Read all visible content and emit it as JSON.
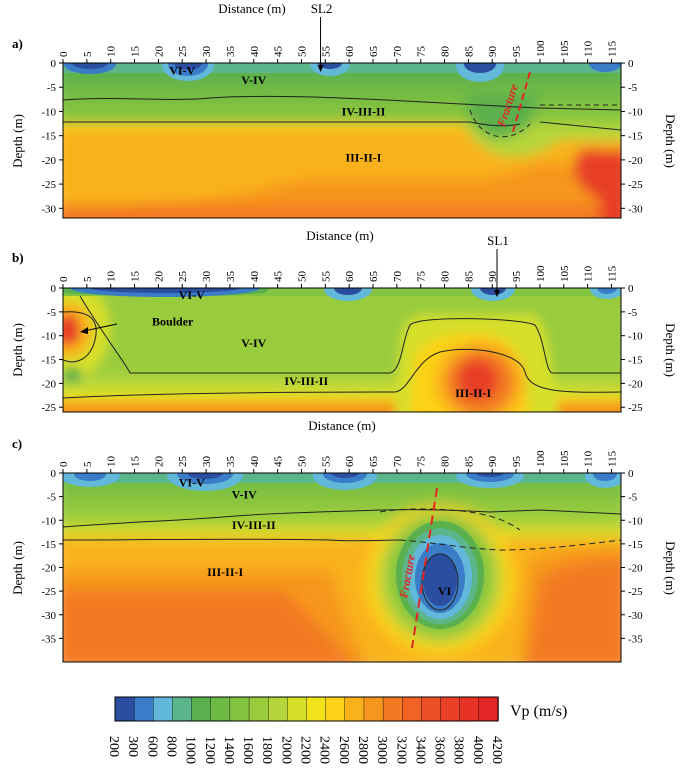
{
  "chart_data": [
    {
      "type": "heatmap",
      "panel_label": "a)",
      "xlabel_top": "Distance (m)",
      "xlabel_bottom": "Distance (m)",
      "ylabel_left": "Depth (m)",
      "ylabel_right": "Depth (m)",
      "xlim": [
        0,
        117
      ],
      "ylim": [
        -32,
        0
      ],
      "x_ticks": [
        0,
        5,
        10,
        15,
        20,
        25,
        30,
        35,
        40,
        45,
        50,
        55,
        60,
        65,
        70,
        75,
        80,
        85,
        90,
        95,
        100,
        105,
        110,
        115
      ],
      "y_ticks": [
        0,
        -5,
        -10,
        -15,
        -20,
        -25,
        -30
      ],
      "surface_marker": {
        "label": "SL2",
        "x": 54
      },
      "zones": [
        {
          "label": "VI-V",
          "x": 25,
          "y": -1.5
        },
        {
          "label": "V-IV",
          "x": 40,
          "y": -3.5
        },
        {
          "label": "IV-III-II",
          "x": 63,
          "y": -10
        },
        {
          "label": "III-II-I",
          "x": 63,
          "y": -19.5
        }
      ],
      "annotations": [
        {
          "text": "Fracture",
          "x": 94,
          "y": -9
        }
      ]
    },
    {
      "type": "heatmap",
      "panel_label": "b)",
      "xlabel_bottom": "Distance (m)",
      "ylabel_left": "Depth (m)",
      "ylabel_right": "Depth (m)",
      "xlim": [
        0,
        117
      ],
      "ylim": [
        -26,
        0
      ],
      "x_ticks": [
        0,
        5,
        10,
        15,
        20,
        25,
        30,
        35,
        40,
        45,
        50,
        55,
        60,
        65,
        70,
        75,
        80,
        85,
        90,
        95,
        100,
        105,
        110,
        115
      ],
      "y_ticks": [
        0,
        -5,
        -10,
        -15,
        -20,
        -25
      ],
      "surface_marker": {
        "label": "SL1",
        "x": 91
      },
      "zones": [
        {
          "label": "VI-V",
          "x": 27,
          "y": -1.5
        },
        {
          "label": "V-IV",
          "x": 40,
          "y": -11.5
        },
        {
          "label": "IV-III-II",
          "x": 51,
          "y": -19.5
        },
        {
          "label": "III-II-I",
          "x": 86,
          "y": -22
        }
      ],
      "annotations": [
        {
          "text": "Boulder",
          "x": 23,
          "y": -7
        }
      ]
    },
    {
      "type": "heatmap",
      "panel_label": "c)",
      "ylabel_left": "Depth (m)",
      "ylabel_right": "Depth (m)",
      "xlim": [
        0,
        117
      ],
      "ylim": [
        -40,
        0
      ],
      "x_ticks": [
        0,
        5,
        10,
        15,
        20,
        25,
        30,
        35,
        40,
        45,
        50,
        55,
        60,
        65,
        70,
        75,
        80,
        85,
        90,
        95,
        100,
        105,
        110,
        115
      ],
      "y_ticks": [
        0,
        -5,
        -10,
        -15,
        -20,
        -25,
        -30,
        -35
      ],
      "zones": [
        {
          "label": "VI-V",
          "x": 27,
          "y": -2
        },
        {
          "label": "V-IV",
          "x": 38,
          "y": -4.5
        },
        {
          "label": "IV-III-II",
          "x": 40,
          "y": -11
        },
        {
          "label": "III-II-I",
          "x": 34,
          "y": -21
        },
        {
          "label": "VI",
          "x": 80,
          "y": -25
        }
      ],
      "annotations": [
        {
          "text": "Fracture",
          "x": 73,
          "y": -22
        }
      ]
    }
  ],
  "colorbar": {
    "label": "Vp (m/s)",
    "ticks": [
      200,
      300,
      600,
      800,
      1000,
      1200,
      1400,
      1600,
      1800,
      2000,
      2200,
      2400,
      2600,
      2800,
      3000,
      3200,
      3400,
      3600,
      3800,
      4000,
      4200
    ],
    "colors": [
      "#2b4ea0",
      "#3a7cc7",
      "#62b8d8",
      "#5db58c",
      "#5bb04e",
      "#6fba44",
      "#84c341",
      "#99cc3c",
      "#b5d53a",
      "#d6df2a",
      "#f2e21a",
      "#fcd116",
      "#f9b21b",
      "#f6961e",
      "#f37a23",
      "#f06225",
      "#ec5027",
      "#e84127",
      "#e63326",
      "#e32525"
    ]
  }
}
